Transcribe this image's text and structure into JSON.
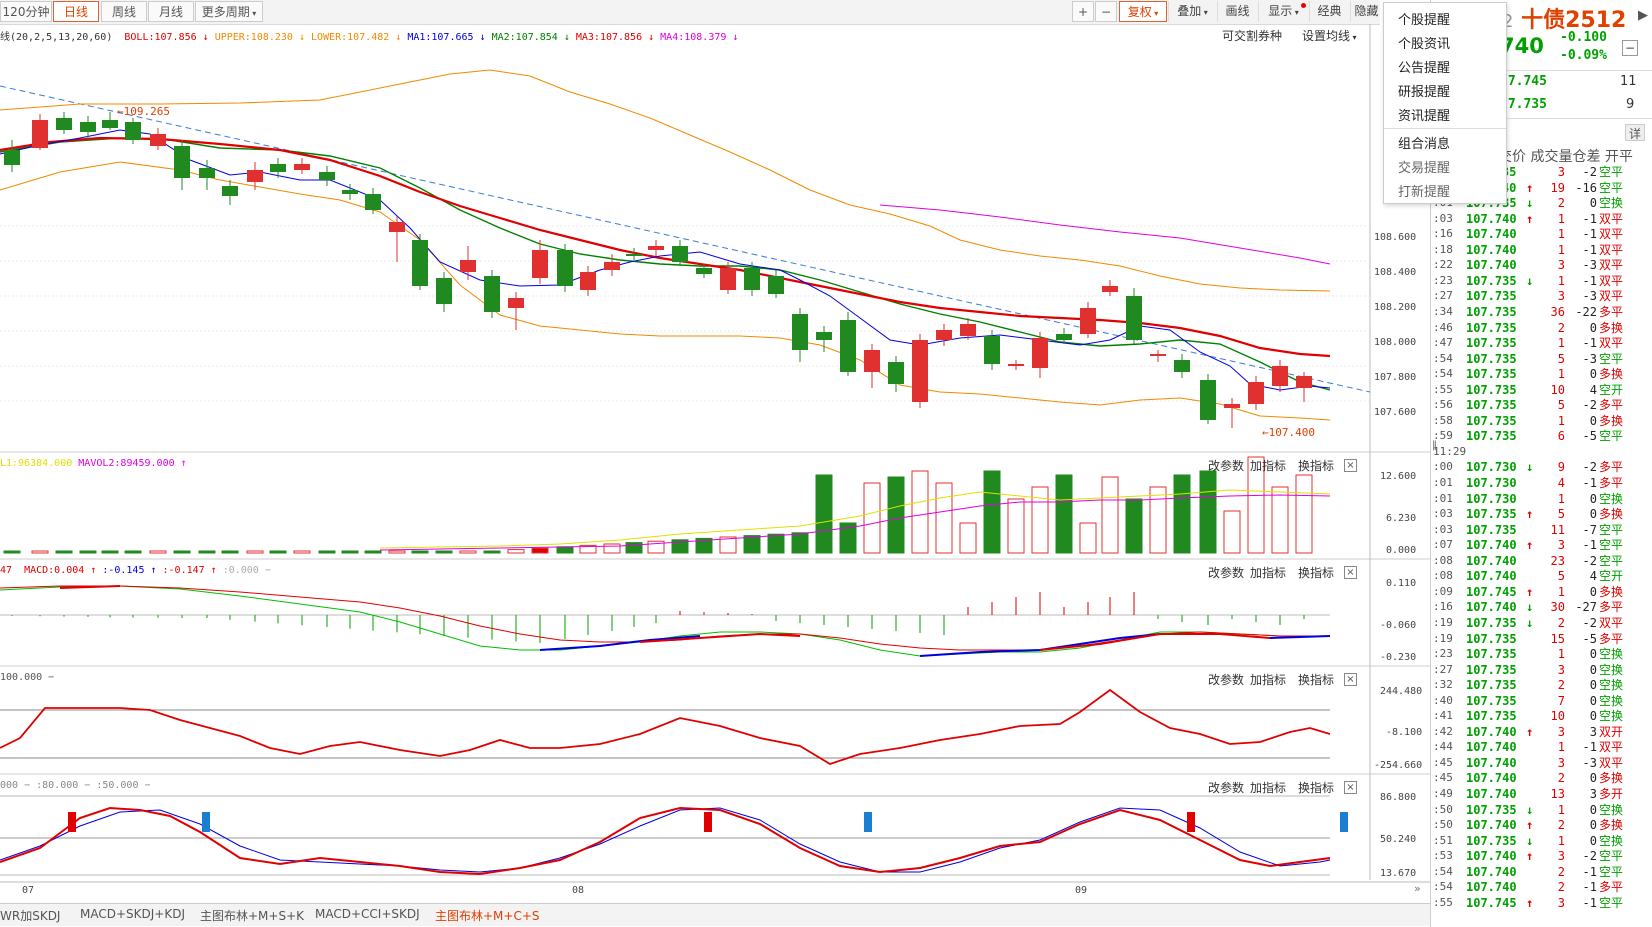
{
  "toolbar": {
    "tabs": [
      {
        "label": "120分钟",
        "active": false
      },
      {
        "label": "日线",
        "active": true
      },
      {
        "label": "周线",
        "active": false
      },
      {
        "label": "月线",
        "active": false
      },
      {
        "label": "更多周期",
        "active": false
      }
    ],
    "right_buttons": [
      "+",
      "−",
      "复权",
      "叠加",
      "画线",
      "显示",
      "经典",
      "隐藏"
    ]
  },
  "main_indicator": {
    "prefix": "线(20,2,5,13,20,60)",
    "items": [
      {
        "text": "BOLL:107.856",
        "arrow": "↓",
        "color": "#e00000"
      },
      {
        "text": "UPPER:108.230",
        "arrow": "↓",
        "color": "#f08a00"
      },
      {
        "text": "LOWER:107.482",
        "arrow": "↓",
        "color": "#f08a00"
      },
      {
        "text": "MA1:107.665",
        "arrow": "↓",
        "color": "#0000e0"
      },
      {
        "text": "MA2:107.854",
        "arrow": "↓",
        "color": "#008000"
      },
      {
        "text": "MA3:107.856",
        "arrow": "↓",
        "color": "#e00000"
      },
      {
        "text": "MA4:108.379",
        "arrow": "↓",
        "color": "#e000e0"
      }
    ],
    "link1": "可交割券种",
    "link2": "设置均线"
  },
  "main_axis": [
    "108.600",
    "108.400",
    "108.200",
    "108.000",
    "107.800",
    "107.600"
  ],
  "annotations": {
    "high": "←109.265",
    "low": "←107.400"
  },
  "volume": {
    "label1": "L1:96384.000",
    "label2": "MAVOL2:89459.000",
    "arrow2": "↑",
    "axis": [
      "12.600",
      "6.230",
      "0.000"
    ]
  },
  "macd": {
    "prefix": "47",
    "items": [
      {
        "text": "MACD:0.004",
        "arrow": "↑",
        "color": "#e00000"
      },
      {
        "text": ":-0.145",
        "arrow": "↑",
        "color": "#0000e0"
      },
      {
        "text": ":-0.147",
        "arrow": "↑",
        "color": "#e00000"
      },
      {
        "text": ":0.000",
        "arrow": "−",
        "color": "#aaaaaa"
      }
    ],
    "axis": [
      "0.110",
      "-0.060",
      "-0.230"
    ]
  },
  "cci": {
    "label": "100.000 −",
    "axis": [
      "244.480",
      "-8.100",
      "-254.660"
    ]
  },
  "kdj": {
    "label": "000 − :80.000 − :50.000 −",
    "axis": [
      "86.800",
      "50.240",
      "13.670"
    ]
  },
  "panel_buttons": [
    "改参数",
    "加指标",
    "换指标"
  ],
  "x_dates": [
    "07",
    "08",
    "09"
  ],
  "bottom_tabs": [
    {
      "label": "WR加SKDJ",
      "active": false
    },
    {
      "label": "MACD+SKDJ+KDJ",
      "active": false
    },
    {
      "label": "主图布林+M+S+K",
      "active": false
    },
    {
      "label": "MACD+CCI+SKDJ",
      "active": false
    },
    {
      "label": "主图布林+M+C+S",
      "active": true
    }
  ],
  "menu": {
    "items": [
      "个股提醒",
      "个股资讯",
      "公告提醒",
      "研报提醒",
      "资讯提醒",
      "组合消息",
      "交易提醒",
      "打新提醒"
    ]
  },
  "quote": {
    "title": "十债2512",
    "prefix": "2",
    "price": "740",
    "change": "-0.100",
    "change_pct": "-0.09%",
    "book": [
      {
        "price": "07.745",
        "vol": "11"
      },
      {
        "price": "07.735",
        "vol": "9"
      }
    ],
    "detail_btn": "详",
    "header": "交价 成交量仓差 开平"
  },
  "ticks": [
    {
      "t": "",
      "p": "07.735",
      "a": "",
      "v": "3",
      "d": "-2",
      "k": "空平"
    },
    {
      "t": "",
      "p": "07.740",
      "a": "↑",
      "v": "19",
      "d": "-16",
      "k": "空平"
    },
    {
      "t": ":01",
      "p": "107.735",
      "a": "↓",
      "v": "2",
      "d": "0",
      "k": "空换"
    },
    {
      "t": ":03",
      "p": "107.740",
      "a": "↑",
      "v": "1",
      "d": "-1",
      "k": "双平"
    },
    {
      "t": ":16",
      "p": "107.740",
      "a": "",
      "v": "1",
      "d": "-1",
      "k": "双平"
    },
    {
      "t": ":18",
      "p": "107.740",
      "a": "",
      "v": "1",
      "d": "-1",
      "k": "双平"
    },
    {
      "t": ":22",
      "p": "107.740",
      "a": "",
      "v": "3",
      "d": "-3",
      "k": "双平"
    },
    {
      "t": ":23",
      "p": "107.735",
      "a": "↓",
      "v": "1",
      "d": "-1",
      "k": "双平"
    },
    {
      "t": ":27",
      "p": "107.735",
      "a": "",
      "v": "3",
      "d": "-3",
      "k": "双平"
    },
    {
      "t": ":34",
      "p": "107.735",
      "a": "",
      "v": "36",
      "d": "-22",
      "k": "多平"
    },
    {
      "t": ":46",
      "p": "107.735",
      "a": "",
      "v": "2",
      "d": "0",
      "k": "多换"
    },
    {
      "t": ":47",
      "p": "107.735",
      "a": "",
      "v": "1",
      "d": "-1",
      "k": "双平"
    },
    {
      "t": ":54",
      "p": "107.735",
      "a": "",
      "v": "5",
      "d": "-3",
      "k": "空平"
    },
    {
      "t": ":54",
      "p": "107.735",
      "a": "",
      "v": "1",
      "d": "0",
      "k": "多换"
    },
    {
      "t": ":55",
      "p": "107.735",
      "a": "",
      "v": "10",
      "d": "4",
      "k": "空开"
    },
    {
      "t": ":56",
      "p": "107.735",
      "a": "",
      "v": "5",
      "d": "-2",
      "k": "多平"
    },
    {
      "t": ":58",
      "p": "107.735",
      "a": "",
      "v": "1",
      "d": "0",
      "k": "多换"
    },
    {
      "t": ":59",
      "p": "107.735",
      "a": "",
      "v": "6",
      "d": "-5",
      "k": "空平"
    },
    {
      "t": "11:29",
      "p": "",
      "a": "",
      "v": "",
      "d": "",
      "k": ""
    },
    {
      "t": ":00",
      "p": "107.730",
      "a": "↓",
      "v": "9",
      "d": "-2",
      "k": "多平"
    },
    {
      "t": ":01",
      "p": "107.730",
      "a": "",
      "v": "4",
      "d": "-1",
      "k": "多平"
    },
    {
      "t": ":01",
      "p": "107.730",
      "a": "",
      "v": "1",
      "d": "0",
      "k": "空换"
    },
    {
      "t": ":03",
      "p": "107.735",
      "a": "↑",
      "v": "5",
      "d": "0",
      "k": "多换"
    },
    {
      "t": ":03",
      "p": "107.735",
      "a": "",
      "v": "11",
      "d": "-7",
      "k": "空平"
    },
    {
      "t": ":07",
      "p": "107.740",
      "a": "↑",
      "v": "3",
      "d": "-1",
      "k": "空平"
    },
    {
      "t": ":08",
      "p": "107.740",
      "a": "",
      "v": "23",
      "d": "-2",
      "k": "空平"
    },
    {
      "t": ":08",
      "p": "107.740",
      "a": "",
      "v": "5",
      "d": "4",
      "k": "空开"
    },
    {
      "t": ":09",
      "p": "107.745",
      "a": "↑",
      "v": "1",
      "d": "0",
      "k": "多换"
    },
    {
      "t": ":16",
      "p": "107.740",
      "a": "↓",
      "v": "30",
      "d": "-27",
      "k": "多平"
    },
    {
      "t": ":19",
      "p": "107.735",
      "a": "↓",
      "v": "2",
      "d": "-2",
      "k": "双平"
    },
    {
      "t": ":19",
      "p": "107.735",
      "a": "",
      "v": "15",
      "d": "-5",
      "k": "多平"
    },
    {
      "t": ":23",
      "p": "107.735",
      "a": "",
      "v": "1",
      "d": "0",
      "k": "空换"
    },
    {
      "t": ":27",
      "p": "107.735",
      "a": "",
      "v": "3",
      "d": "0",
      "k": "空换"
    },
    {
      "t": ":32",
      "p": "107.735",
      "a": "",
      "v": "2",
      "d": "0",
      "k": "空换"
    },
    {
      "t": ":40",
      "p": "107.735",
      "a": "",
      "v": "7",
      "d": "0",
      "k": "空换"
    },
    {
      "t": ":41",
      "p": "107.735",
      "a": "",
      "v": "10",
      "d": "0",
      "k": "空换"
    },
    {
      "t": ":42",
      "p": "107.740",
      "a": "↑",
      "v": "3",
      "d": "3",
      "k": "双开"
    },
    {
      "t": ":44",
      "p": "107.740",
      "a": "",
      "v": "1",
      "d": "-1",
      "k": "双平"
    },
    {
      "t": ":45",
      "p": "107.740",
      "a": "",
      "v": "3",
      "d": "-3",
      "k": "双平"
    },
    {
      "t": ":45",
      "p": "107.740",
      "a": "",
      "v": "2",
      "d": "0",
      "k": "多换"
    },
    {
      "t": ":49",
      "p": "107.740",
      "a": "",
      "v": "13",
      "d": "3",
      "k": "多开"
    },
    {
      "t": ":50",
      "p": "107.735",
      "a": "↓",
      "v": "1",
      "d": "0",
      "k": "空换"
    },
    {
      "t": ":50",
      "p": "107.740",
      "a": "↑",
      "v": "2",
      "d": "0",
      "k": "多换"
    },
    {
      "t": ":51",
      "p": "107.735",
      "a": "↓",
      "v": "1",
      "d": "0",
      "k": "空换"
    },
    {
      "t": ":53",
      "p": "107.740",
      "a": "↑",
      "v": "3",
      "d": "-2",
      "k": "空平"
    },
    {
      "t": ":54",
      "p": "107.740",
      "a": "",
      "v": "2",
      "d": "-1",
      "k": "空平"
    },
    {
      "t": ":54",
      "p": "107.740",
      "a": "",
      "v": "2",
      "d": "-1",
      "k": "多平"
    },
    {
      "t": ":55",
      "p": "107.745",
      "a": "↑",
      "v": "3",
      "d": "-1",
      "k": "空平"
    }
  ]
}
